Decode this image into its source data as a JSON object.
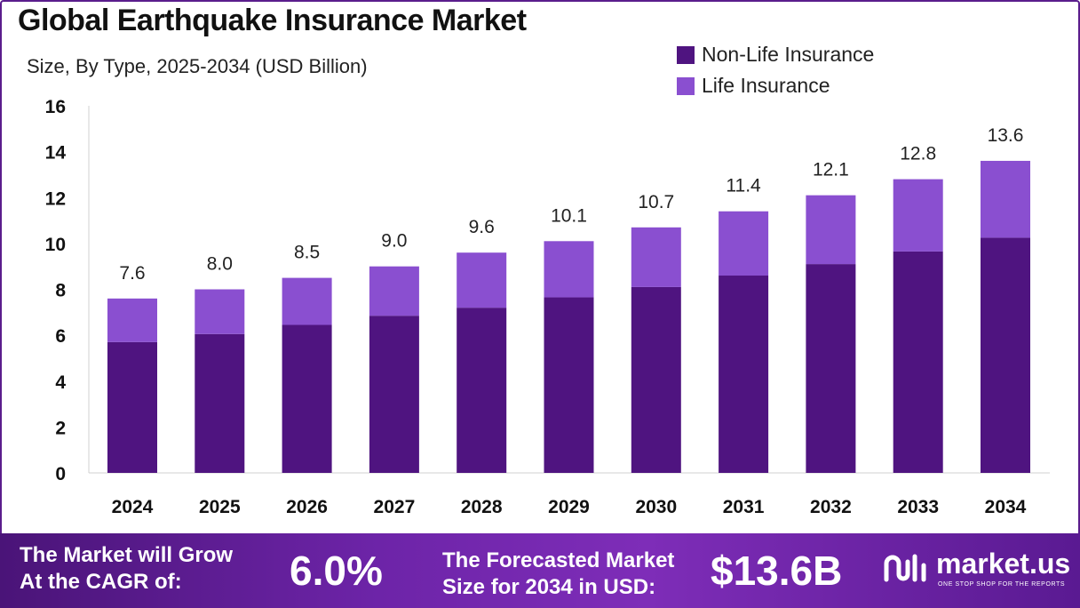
{
  "header": {
    "title": "Global Earthquake Insurance Market",
    "subtitle": "Size, By Type, 2025-2034 (USD Billion)"
  },
  "legend": [
    {
      "label": "Non-Life Insurance",
      "color": "#4f1480"
    },
    {
      "label": "Life Insurance",
      "color": "#8a4fd0"
    }
  ],
  "chart_data": {
    "type": "bar",
    "stacked": true,
    "title": "Global Earthquake Insurance Market",
    "ylabel": "",
    "xlabel": "",
    "ylim": [
      0,
      16
    ],
    "yticks": [
      0,
      2,
      4,
      6,
      8,
      10,
      12,
      14,
      16
    ],
    "categories": [
      "2024",
      "2025",
      "2026",
      "2027",
      "2028",
      "2029",
      "2030",
      "2031",
      "2032",
      "2033",
      "2034"
    ],
    "series": [
      {
        "name": "Non-Life Insurance",
        "color": "#4f1480",
        "values": [
          5.7,
          6.05,
          6.45,
          6.85,
          7.2,
          7.65,
          8.1,
          8.6,
          9.1,
          9.65,
          10.25
        ]
      },
      {
        "name": "Life Insurance",
        "color": "#8a4fd0",
        "values": [
          1.9,
          1.95,
          2.05,
          2.15,
          2.4,
          2.45,
          2.6,
          2.8,
          3.0,
          3.15,
          3.35
        ]
      }
    ],
    "totals": [
      "7.6",
      "8.0",
      "8.5",
      "9.0",
      "9.6",
      "10.1",
      "10.7",
      "11.4",
      "12.1",
      "12.8",
      "13.6"
    ],
    "legend_position": "top-right",
    "grid": false
  },
  "footer": {
    "cagr_label_line1": "The Market will Grow",
    "cagr_label_line2": "At the CAGR of:",
    "cagr_value": "6.0%",
    "forecast_label_line1": "The Forecasted Market",
    "forecast_label_line2": "Size for 2034 in USD:",
    "forecast_value": "$13.6B",
    "brand_name": "market.us",
    "brand_tagline": "ONE STOP SHOP FOR THE REPORTS"
  }
}
